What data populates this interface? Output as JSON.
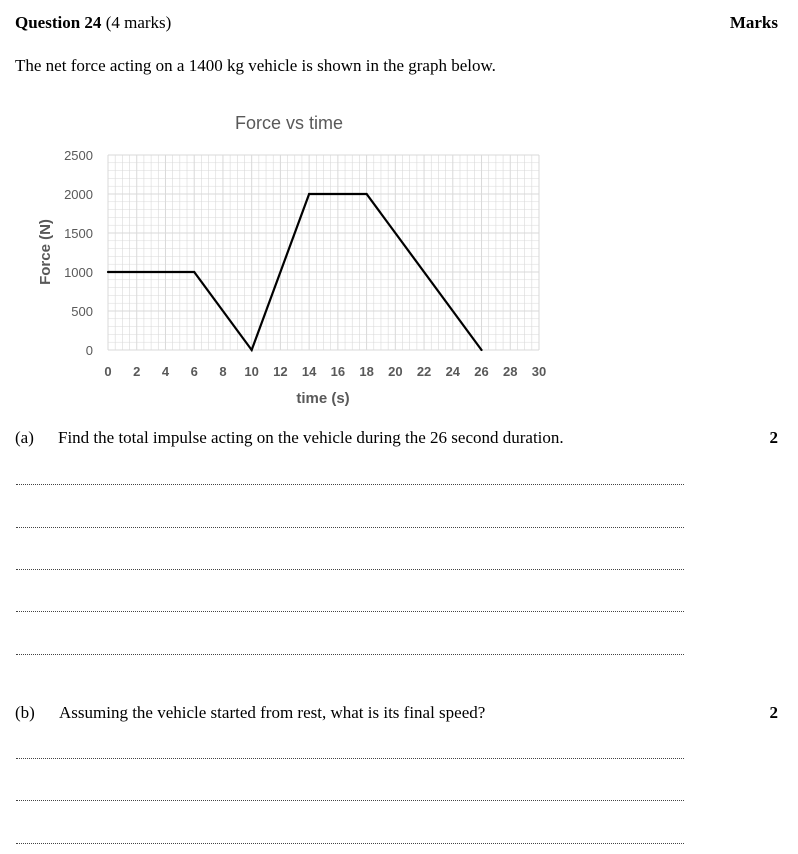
{
  "header": {
    "question_bold": "Question 24",
    "question_marks": "(4 marks)",
    "marks_heading": "Marks"
  },
  "intro_text": "The net force acting on a 1400 kg vehicle is shown in the graph below.",
  "chart_data": {
    "type": "line",
    "title": "Force vs time",
    "xlabel": "time (s)",
    "ylabel": "Force (N)",
    "xlim": [
      0,
      30
    ],
    "ylim": [
      0,
      2500
    ],
    "x_ticks": [
      0,
      2,
      4,
      6,
      8,
      10,
      12,
      14,
      16,
      18,
      20,
      22,
      24,
      26,
      28,
      30
    ],
    "y_ticks": [
      0,
      500,
      1000,
      1500,
      2000,
      2500
    ],
    "grid": true,
    "series": [
      {
        "x": [
          0,
          6,
          10,
          14,
          18,
          26
        ],
        "y": [
          1000,
          1000,
          0,
          2000,
          2000,
          0
        ]
      }
    ],
    "colors": {
      "line": "#000000",
      "grid": "#d9d9d9",
      "text": "#595959"
    }
  },
  "parts": [
    {
      "label": "(a)",
      "text": "Find the total impulse acting on the vehicle during the 26 second duration.",
      "marks": "2"
    },
    {
      "label": "(b)",
      "text": "Assuming the vehicle started from rest, what is its final speed?",
      "marks": "2"
    }
  ]
}
